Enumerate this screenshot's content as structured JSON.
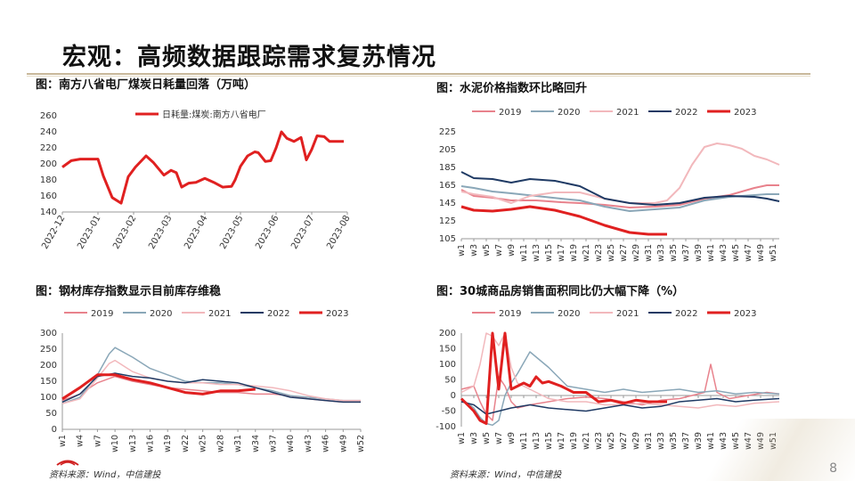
{
  "page": {
    "title": "宏观：高频数据跟踪需求复苏情况",
    "page_number": "8",
    "source_left": "资料来源：Wind，中信建投",
    "source_right": "资料来源：Wind，中信建投"
  },
  "colors": {
    "y2019": "#e8828c",
    "y2020": "#8aa7b8",
    "y2021": "#f2b8bc",
    "y2022": "#1f3a64",
    "y2023": "#e02020",
    "axis": "#999999"
  },
  "chart_data": [
    {
      "id": "coal",
      "type": "line",
      "title": "图：南方八省电厂煤炭日耗量回落（万吨）",
      "legend": "日耗量:煤炭:南方八省电厂",
      "ylim": [
        140,
        260
      ],
      "yticks": [
        140,
        160,
        180,
        200,
        220,
        240,
        260
      ],
      "xticks": [
        "2022-12",
        "2023-01",
        "2023-02",
        "2023-03",
        "2023-04",
        "2023-05",
        "2023-06",
        "2023-07",
        "2023-08"
      ],
      "series": [
        {
          "name": "日耗量:煤炭:南方八省电厂",
          "color_key": "y2023",
          "x": [
            0,
            0.25,
            0.5,
            0.75,
            1,
            1.15,
            1.4,
            1.65,
            1.85,
            2.05,
            2.35,
            2.55,
            2.85,
            3.05,
            3.2,
            3.35,
            3.55,
            3.75,
            4,
            4.25,
            4.5,
            4.75,
            4.85,
            5,
            5.2,
            5.4,
            5.5,
            5.7,
            5.85,
            6,
            6.15,
            6.3,
            6.5,
            6.7,
            6.85,
            7,
            7.15,
            7.35,
            7.5,
            7.75,
            7.9
          ],
          "values": [
            196,
            204,
            206,
            206,
            206,
            185,
            158,
            151,
            184,
            196,
            210,
            202,
            186,
            192,
            189,
            171,
            176,
            177,
            182,
            177,
            171,
            172,
            180,
            197,
            210,
            215,
            214,
            203,
            204,
            220,
            240,
            232,
            228,
            233,
            205,
            218,
            235,
            234,
            228,
            228,
            228
          ]
        }
      ]
    },
    {
      "id": "cement",
      "type": "line",
      "title": "图：水泥价格指数环比略回升",
      "ylim": [
        105,
        225
      ],
      "yticks": [
        105,
        125,
        145,
        165,
        185,
        205,
        225
      ],
      "xlabels": [
        "w1",
        "w3",
        "w5",
        "w7",
        "w9",
        "w11",
        "w13",
        "w15",
        "w17",
        "w19",
        "w21",
        "w23",
        "w25",
        "w27",
        "w29",
        "w31",
        "w33",
        "w35",
        "w37",
        "w39",
        "w41",
        "w43",
        "w45",
        "w47",
        "w49",
        "w51"
      ],
      "legend": [
        "2019",
        "2020",
        "2021",
        "2022",
        "2023"
      ],
      "series": [
        {
          "name": "2019",
          "color_key": "y2019",
          "x": [
            1,
            3,
            6,
            9,
            13,
            17,
            20,
            24,
            28,
            32,
            36,
            40,
            44,
            48,
            50,
            52
          ],
          "values": [
            160,
            153,
            151,
            148,
            148,
            146,
            145,
            143,
            140,
            141,
            143,
            150,
            154,
            162,
            165,
            165
          ]
        },
        {
          "name": "2020",
          "color_key": "y2020",
          "x": [
            1,
            3,
            6,
            9,
            13,
            17,
            20,
            24,
            28,
            32,
            36,
            40,
            44,
            48,
            50,
            52
          ],
          "values": [
            164,
            162,
            158,
            156,
            153,
            150,
            148,
            141,
            136,
            138,
            140,
            148,
            152,
            154,
            155,
            155
          ]
        },
        {
          "name": "2021",
          "color_key": "y2021",
          "x": [
            1,
            3,
            6,
            9,
            12,
            16,
            20,
            24,
            28,
            32,
            34,
            36,
            38,
            40,
            42,
            44,
            46,
            48,
            50,
            52
          ],
          "values": [
            158,
            155,
            152,
            145,
            153,
            157,
            157,
            150,
            145,
            145,
            148,
            162,
            188,
            208,
            212,
            210,
            206,
            198,
            194,
            188
          ]
        },
        {
          "name": "2022",
          "color_key": "y2022",
          "x": [
            1,
            3,
            6,
            9,
            12,
            16,
            20,
            24,
            28,
            32,
            36,
            40,
            44,
            48,
            50,
            52
          ],
          "values": [
            180,
            173,
            172,
            168,
            172,
            170,
            164,
            150,
            145,
            143,
            145,
            151,
            153,
            152,
            150,
            147
          ]
        },
        {
          "name": "2023",
          "color_key": "y2023",
          "x": [
            1,
            3,
            6,
            9,
            12,
            16,
            20,
            24,
            28,
            31,
            34
          ],
          "values": [
            141,
            137,
            136,
            138,
            141,
            137,
            130,
            120,
            112,
            110,
            110
          ]
        }
      ]
    },
    {
      "id": "steel",
      "type": "line",
      "title": "图：钢材库存指数显示目前库存维稳",
      "ylim": [
        0,
        300
      ],
      "yticks": [
        0,
        50,
        100,
        150,
        200,
        250,
        300
      ],
      "xlabels": [
        "w1",
        "w4",
        "w7",
        "w10",
        "w13",
        "w16",
        "w19",
        "w22",
        "w25",
        "w28",
        "w31",
        "w34",
        "w37",
        "w40",
        "w43",
        "w46",
        "w49",
        "w52"
      ],
      "legend": [
        "2019",
        "2020",
        "2021",
        "2022",
        "2023"
      ],
      "series": [
        {
          "name": "2019",
          "color_key": "y2019",
          "x": [
            1,
            4,
            7,
            10,
            13,
            16,
            19,
            22,
            25,
            28,
            31,
            34,
            37,
            40,
            43,
            46,
            49,
            52
          ],
          "values": [
            90,
            110,
            145,
            165,
            150,
            140,
            130,
            125,
            120,
            115,
            115,
            110,
            110,
            105,
            95,
            90,
            85,
            85
          ]
        },
        {
          "name": "2020",
          "color_key": "y2020",
          "x": [
            1,
            4,
            7,
            9,
            10,
            13,
            16,
            19,
            22,
            25,
            28,
            31,
            34,
            37,
            40,
            43,
            46,
            49,
            52
          ],
          "values": [
            80,
            100,
            170,
            235,
            255,
            225,
            190,
            170,
            150,
            145,
            145,
            140,
            130,
            120,
            105,
            100,
            95,
            90,
            90
          ]
        },
        {
          "name": "2021",
          "color_key": "y2021",
          "x": [
            1,
            4,
            7,
            9,
            10,
            13,
            16,
            19,
            22,
            25,
            28,
            31,
            34,
            37,
            40,
            43,
            46,
            49,
            52
          ],
          "values": [
            80,
            95,
            160,
            205,
            215,
            180,
            160,
            150,
            145,
            145,
            140,
            140,
            135,
            130,
            120,
            105,
            95,
            90,
            90
          ]
        },
        {
          "name": "2022",
          "color_key": "y2022",
          "x": [
            1,
            4,
            7,
            10,
            13,
            16,
            19,
            22,
            25,
            28,
            31,
            34,
            37,
            40,
            43,
            46,
            49,
            52
          ],
          "values": [
            85,
            110,
            165,
            175,
            165,
            160,
            150,
            145,
            155,
            150,
            145,
            130,
            115,
            100,
            95,
            90,
            85,
            85
          ]
        },
        {
          "name": "2023",
          "color_key": "y2023",
          "x": [
            1,
            4,
            7,
            10,
            13,
            16,
            19,
            22,
            25,
            28,
            31,
            34
          ],
          "values": [
            95,
            130,
            170,
            170,
            155,
            145,
            130,
            115,
            110,
            120,
            120,
            125
          ]
        }
      ]
    },
    {
      "id": "housing",
      "type": "line",
      "title": "图：30城商品房销售面积同比仍大幅下降（%）",
      "ylim": [
        -100,
        200
      ],
      "yticks": [
        -100,
        -50,
        0,
        50,
        100,
        150,
        200
      ],
      "xlabels": [
        "w1",
        "w3",
        "w5",
        "w7",
        "w9",
        "w11",
        "w13",
        "w15",
        "w17",
        "w19",
        "w21",
        "w23",
        "w25",
        "w27",
        "w29",
        "w31",
        "w33",
        "w35",
        "w37",
        "w39",
        "w41",
        "w43",
        "w45",
        "w47",
        "w49",
        "w51"
      ],
      "legend": [
        "2019",
        "2020",
        "2021",
        "2022",
        "2023"
      ],
      "series": [
        {
          "name": "2019",
          "color_key": "y2019",
          "x": [
            1,
            3,
            4,
            5,
            6,
            7,
            8,
            9,
            10,
            12,
            15,
            18,
            21,
            24,
            27,
            30,
            33,
            36,
            38,
            40,
            41,
            42,
            44,
            47,
            50,
            52
          ],
          "values": [
            20,
            30,
            -20,
            -60,
            -80,
            60,
            30,
            -20,
            -40,
            -30,
            -20,
            -10,
            -5,
            -10,
            -20,
            -30,
            -15,
            -10,
            0,
            10,
            100,
            10,
            -10,
            0,
            10,
            5
          ]
        },
        {
          "name": "2020",
          "color_key": "y2020",
          "x": [
            1,
            3,
            4,
            5,
            6,
            7,
            8,
            9,
            10,
            12,
            15,
            18,
            21,
            24,
            27,
            30,
            33,
            36,
            39,
            42,
            45,
            48,
            52
          ],
          "values": [
            -10,
            -40,
            -70,
            -90,
            -95,
            -80,
            0,
            40,
            70,
            140,
            90,
            30,
            20,
            10,
            20,
            10,
            15,
            20,
            10,
            15,
            5,
            10,
            5
          ]
        },
        {
          "name": "2021",
          "color_key": "y2021",
          "x": [
            1,
            3,
            4,
            5,
            6,
            7,
            8,
            9,
            10,
            12,
            15,
            18,
            21,
            24,
            27,
            30,
            33,
            36,
            39,
            42,
            45,
            48,
            52
          ],
          "values": [
            10,
            30,
            100,
            200,
            190,
            160,
            200,
            90,
            40,
            20,
            -10,
            -20,
            -20,
            -30,
            -30,
            -25,
            -30,
            -35,
            -40,
            -30,
            -35,
            -25,
            -20
          ]
        },
        {
          "name": "2022",
          "color_key": "y2022",
          "x": [
            1,
            3,
            5,
            7,
            9,
            12,
            15,
            18,
            21,
            24,
            27,
            30,
            33,
            36,
            39,
            42,
            45,
            48,
            52
          ],
          "values": [
            -20,
            -30,
            -60,
            -50,
            -40,
            -30,
            -40,
            -45,
            -50,
            -40,
            -30,
            -40,
            -35,
            -20,
            -15,
            -10,
            -20,
            -15,
            -10
          ]
        },
        {
          "name": "2023",
          "color_key": "y2023",
          "x": [
            1,
            3,
            4,
            5,
            6,
            7,
            8,
            9,
            10,
            11,
            12,
            13,
            14,
            15,
            17,
            19,
            21,
            23,
            25,
            27,
            29,
            31,
            33,
            34
          ],
          "values": [
            -10,
            -50,
            -80,
            -90,
            200,
            20,
            200,
            20,
            30,
            40,
            30,
            60,
            40,
            45,
            30,
            10,
            10,
            -20,
            -15,
            -25,
            -15,
            -20,
            -20,
            -20
          ]
        }
      ]
    }
  ]
}
